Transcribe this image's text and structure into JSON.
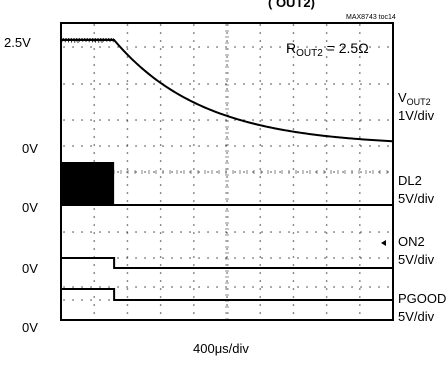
{
  "chart_data": {
    "type": "line",
    "header_fragment": "(  OUT2)",
    "figure_id": "MAX8743 toc14",
    "annotation": {
      "main": "R",
      "sub": "OUT2",
      "rest": " = 2.5Ω"
    },
    "x_scale": "400μs/div",
    "left_labels": {
      "vout_top": "2.5V",
      "vout_zero": "0V",
      "dl_zero": "0V",
      "on_zero": "0V",
      "pgood_zero": "0V"
    },
    "x_divisions": 10,
    "event_time_div": 1.6,
    "series": [
      {
        "name": "VOUT2",
        "name_main": "V",
        "name_sub": "OUT2",
        "scale": "1V/div",
        "initial_V": 2.5,
        "final_V": 0,
        "decay_tau_div": 2.7,
        "description_points_div_V": [
          [
            0,
            2.5
          ],
          [
            1.6,
            2.5
          ],
          [
            4,
            1.07
          ],
          [
            6,
            0.58
          ],
          [
            8,
            0.32
          ],
          [
            10,
            0.17
          ]
        ]
      },
      {
        "name": "DL2",
        "scale": "5V/div",
        "before_event": "switching (dense)",
        "after_event": "low"
      },
      {
        "name": "ON2",
        "scale": "5V/div",
        "before_event": "high",
        "after_event": "low"
      },
      {
        "name": "PGOOD",
        "scale": "5V/div",
        "before_event": "high",
        "after_event": "low"
      }
    ]
  }
}
